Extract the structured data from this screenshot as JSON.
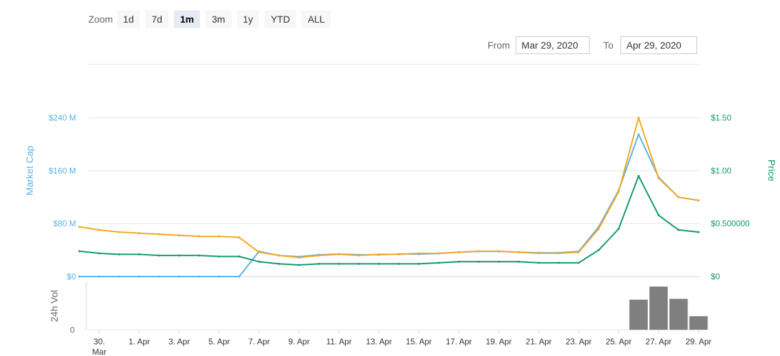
{
  "zoom": {
    "label": "Zoom",
    "buttons": [
      "1d",
      "7d",
      "1m",
      "3m",
      "1y",
      "YTD",
      "ALL"
    ],
    "active": "1m"
  },
  "range": {
    "from_label": "From",
    "from_value": "Mar 29, 2020",
    "to_label": "To",
    "to_value": "Apr 29, 2020"
  },
  "colors": {
    "market_cap": "#56b4e3",
    "price_usd": "#f5a623",
    "price_secondary": "#109968",
    "volume": "#7f7f7f"
  },
  "chart_data": {
    "type": "line",
    "left_axis": {
      "title": "Market Cap",
      "ticks": [
        "$0",
        "$80 M",
        "$160 M",
        "$240 M"
      ],
      "ylim": [
        0,
        240
      ]
    },
    "right_axis": {
      "title": "Price",
      "ticks": [
        "$0",
        "$0.500000",
        "$1.00",
        "$1.50"
      ],
      "ylim": [
        0,
        1.5
      ]
    },
    "volume_axis": {
      "title": "24h Vol",
      "ticks": [
        "0"
      ]
    },
    "x_ticks": [
      "30.\nMar",
      "1. Apr",
      "3. Apr",
      "5. Apr",
      "7. Apr",
      "9. Apr",
      "11. Apr",
      "13. Apr",
      "15. Apr",
      "17. Apr",
      "19. Apr",
      "21. Apr",
      "23. Apr",
      "25. Apr",
      "27. Apr",
      "29. Apr"
    ],
    "x": [
      "2020-03-29",
      "2020-03-30",
      "2020-03-31",
      "2020-04-01",
      "2020-04-02",
      "2020-04-03",
      "2020-04-04",
      "2020-04-05",
      "2020-04-06",
      "2020-04-07",
      "2020-04-08",
      "2020-04-09",
      "2020-04-10",
      "2020-04-11",
      "2020-04-12",
      "2020-04-13",
      "2020-04-14",
      "2020-04-15",
      "2020-04-16",
      "2020-04-17",
      "2020-04-18",
      "2020-04-19",
      "2020-04-20",
      "2020-04-21",
      "2020-04-22",
      "2020-04-23",
      "2020-04-24",
      "2020-04-25",
      "2020-04-26",
      "2020-04-27",
      "2020-04-28",
      "2020-04-29"
    ],
    "series": [
      {
        "name": "Market Cap",
        "axis": "left",
        "values": [
          0,
          0,
          0,
          0,
          0,
          0,
          0,
          0,
          0,
          38,
          32,
          30,
          33,
          34,
          33,
          33,
          34,
          34,
          35,
          37,
          38,
          38,
          37,
          36,
          36,
          38,
          75,
          130,
          215,
          150,
          120,
          115
        ]
      },
      {
        "name": "Price",
        "axis": "right",
        "values": [
          0.47,
          0.44,
          0.42,
          0.41,
          0.4,
          0.39,
          0.38,
          0.38,
          0.37,
          0.23,
          0.2,
          0.18,
          0.2,
          0.21,
          0.2,
          0.21,
          0.21,
          0.22,
          0.22,
          0.23,
          0.24,
          0.24,
          0.23,
          0.22,
          0.22,
          0.23,
          0.45,
          0.8,
          1.5,
          0.93,
          0.75,
          0.72
        ]
      },
      {
        "name": "Price (secondary)",
        "axis": "right",
        "values": [
          0.24,
          0.22,
          0.21,
          0.21,
          0.2,
          0.2,
          0.2,
          0.19,
          0.19,
          0.14,
          0.12,
          0.11,
          0.12,
          0.12,
          0.12,
          0.12,
          0.12,
          0.12,
          0.13,
          0.14,
          0.14,
          0.14,
          0.14,
          0.13,
          0.13,
          0.13,
          0.25,
          0.45,
          0.95,
          0.58,
          0.44,
          0.42
        ]
      }
    ],
    "volume": {
      "x": [
        "2020-04-26",
        "2020-04-27",
        "2020-04-28",
        "2020-04-29"
      ],
      "values": [
        0.7,
        1.0,
        0.72,
        0.32
      ],
      "ylim": [
        0,
        1.1
      ]
    },
    "grid": true,
    "legend": "none"
  }
}
